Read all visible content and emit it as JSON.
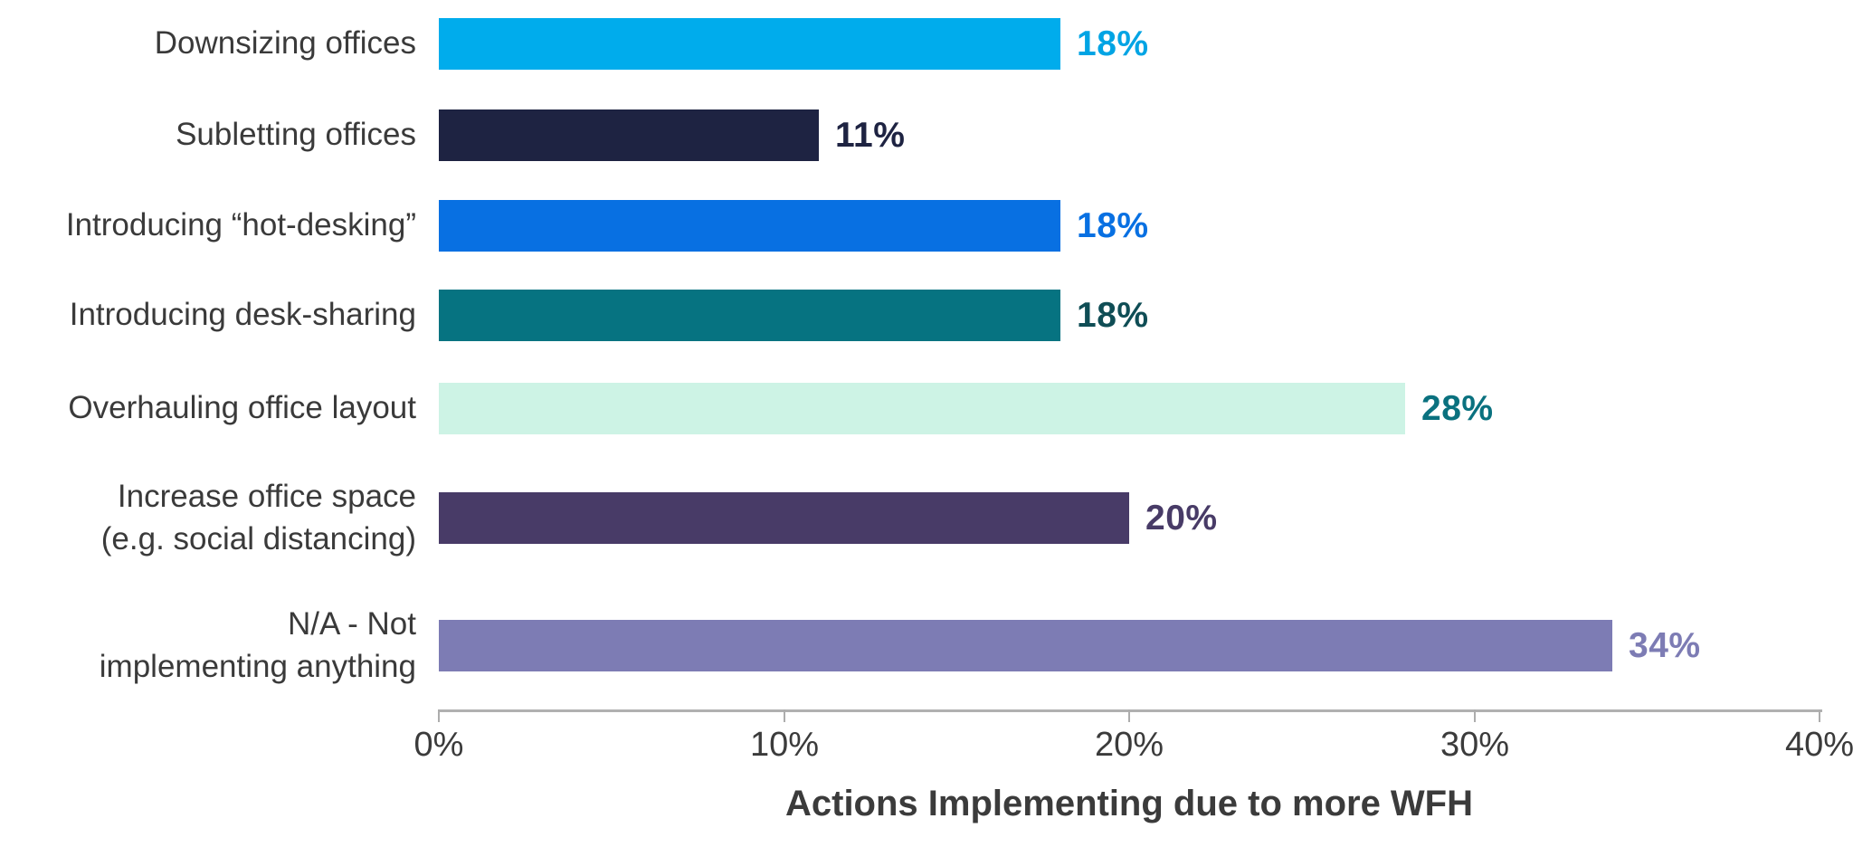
{
  "chart_data": {
    "type": "bar",
    "orientation": "horizontal",
    "title": "",
    "xlabel": "Actions Implementing due to more WFH",
    "ylabel": "",
    "xlim": [
      0,
      40
    ],
    "x_ticks": [
      0,
      10,
      20,
      30,
      40
    ],
    "x_tick_labels": [
      "0%",
      "10%",
      "20%",
      "30%",
      "40%"
    ],
    "grid": false,
    "legend": false,
    "categories": [
      "Downsizing offices",
      "Subletting offices",
      "Introducing “hot-desking”",
      "Introducing desk-sharing",
      "Overhauling office layout",
      "Increase office space\n(e.g. social distancing)",
      "N/A - Not\nimplementing anything"
    ],
    "values": [
      18,
      11,
      18,
      18,
      28,
      20,
      34
    ],
    "value_labels": [
      "18%",
      "11%",
      "18%",
      "18%",
      "28%",
      "20%",
      "34%"
    ],
    "bar_colors": [
      "#00ACEC",
      "#1E2342",
      "#0870E2",
      "#067381",
      "#CDF3E5",
      "#483B67",
      "#7D7CB4"
    ],
    "value_label_colors": [
      "#00A4E4",
      "#1E2342",
      "#0870E2",
      "#0F4D55",
      "#0A717F",
      "#483B67",
      "#7D7CB4"
    ]
  },
  "colors": {
    "background": "#FFFFFF",
    "axis_line": "#B0B0B0",
    "tick_text": "#3B3B3B",
    "category_text": "#3A3A3A",
    "title_text": "#3B3B3B"
  }
}
